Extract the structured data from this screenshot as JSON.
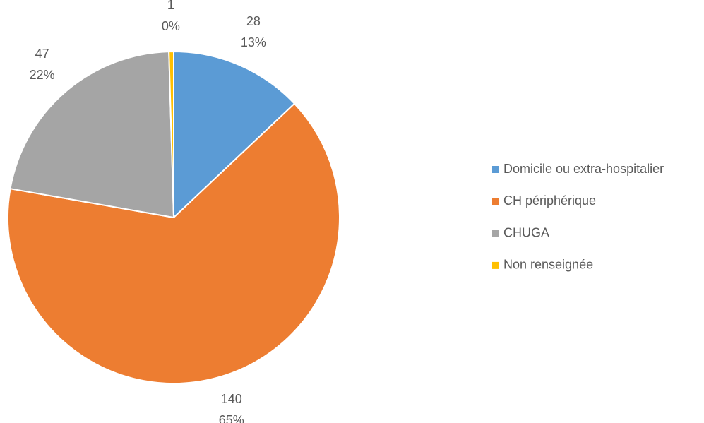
{
  "chart_data": {
    "type": "pie",
    "categories": [
      "Domicile ou extra-hospitalier",
      "CH périphérique",
      "CHUGA",
      "Non renseignée"
    ],
    "values": [
      28,
      140,
      47,
      1
    ],
    "percent_labels": [
      "13%",
      "65%",
      "22%",
      "0%"
    ],
    "colors": [
      "#5b9bd5",
      "#ed7d31",
      "#a5a5a5",
      "#ffc000"
    ],
    "legend": "right"
  }
}
